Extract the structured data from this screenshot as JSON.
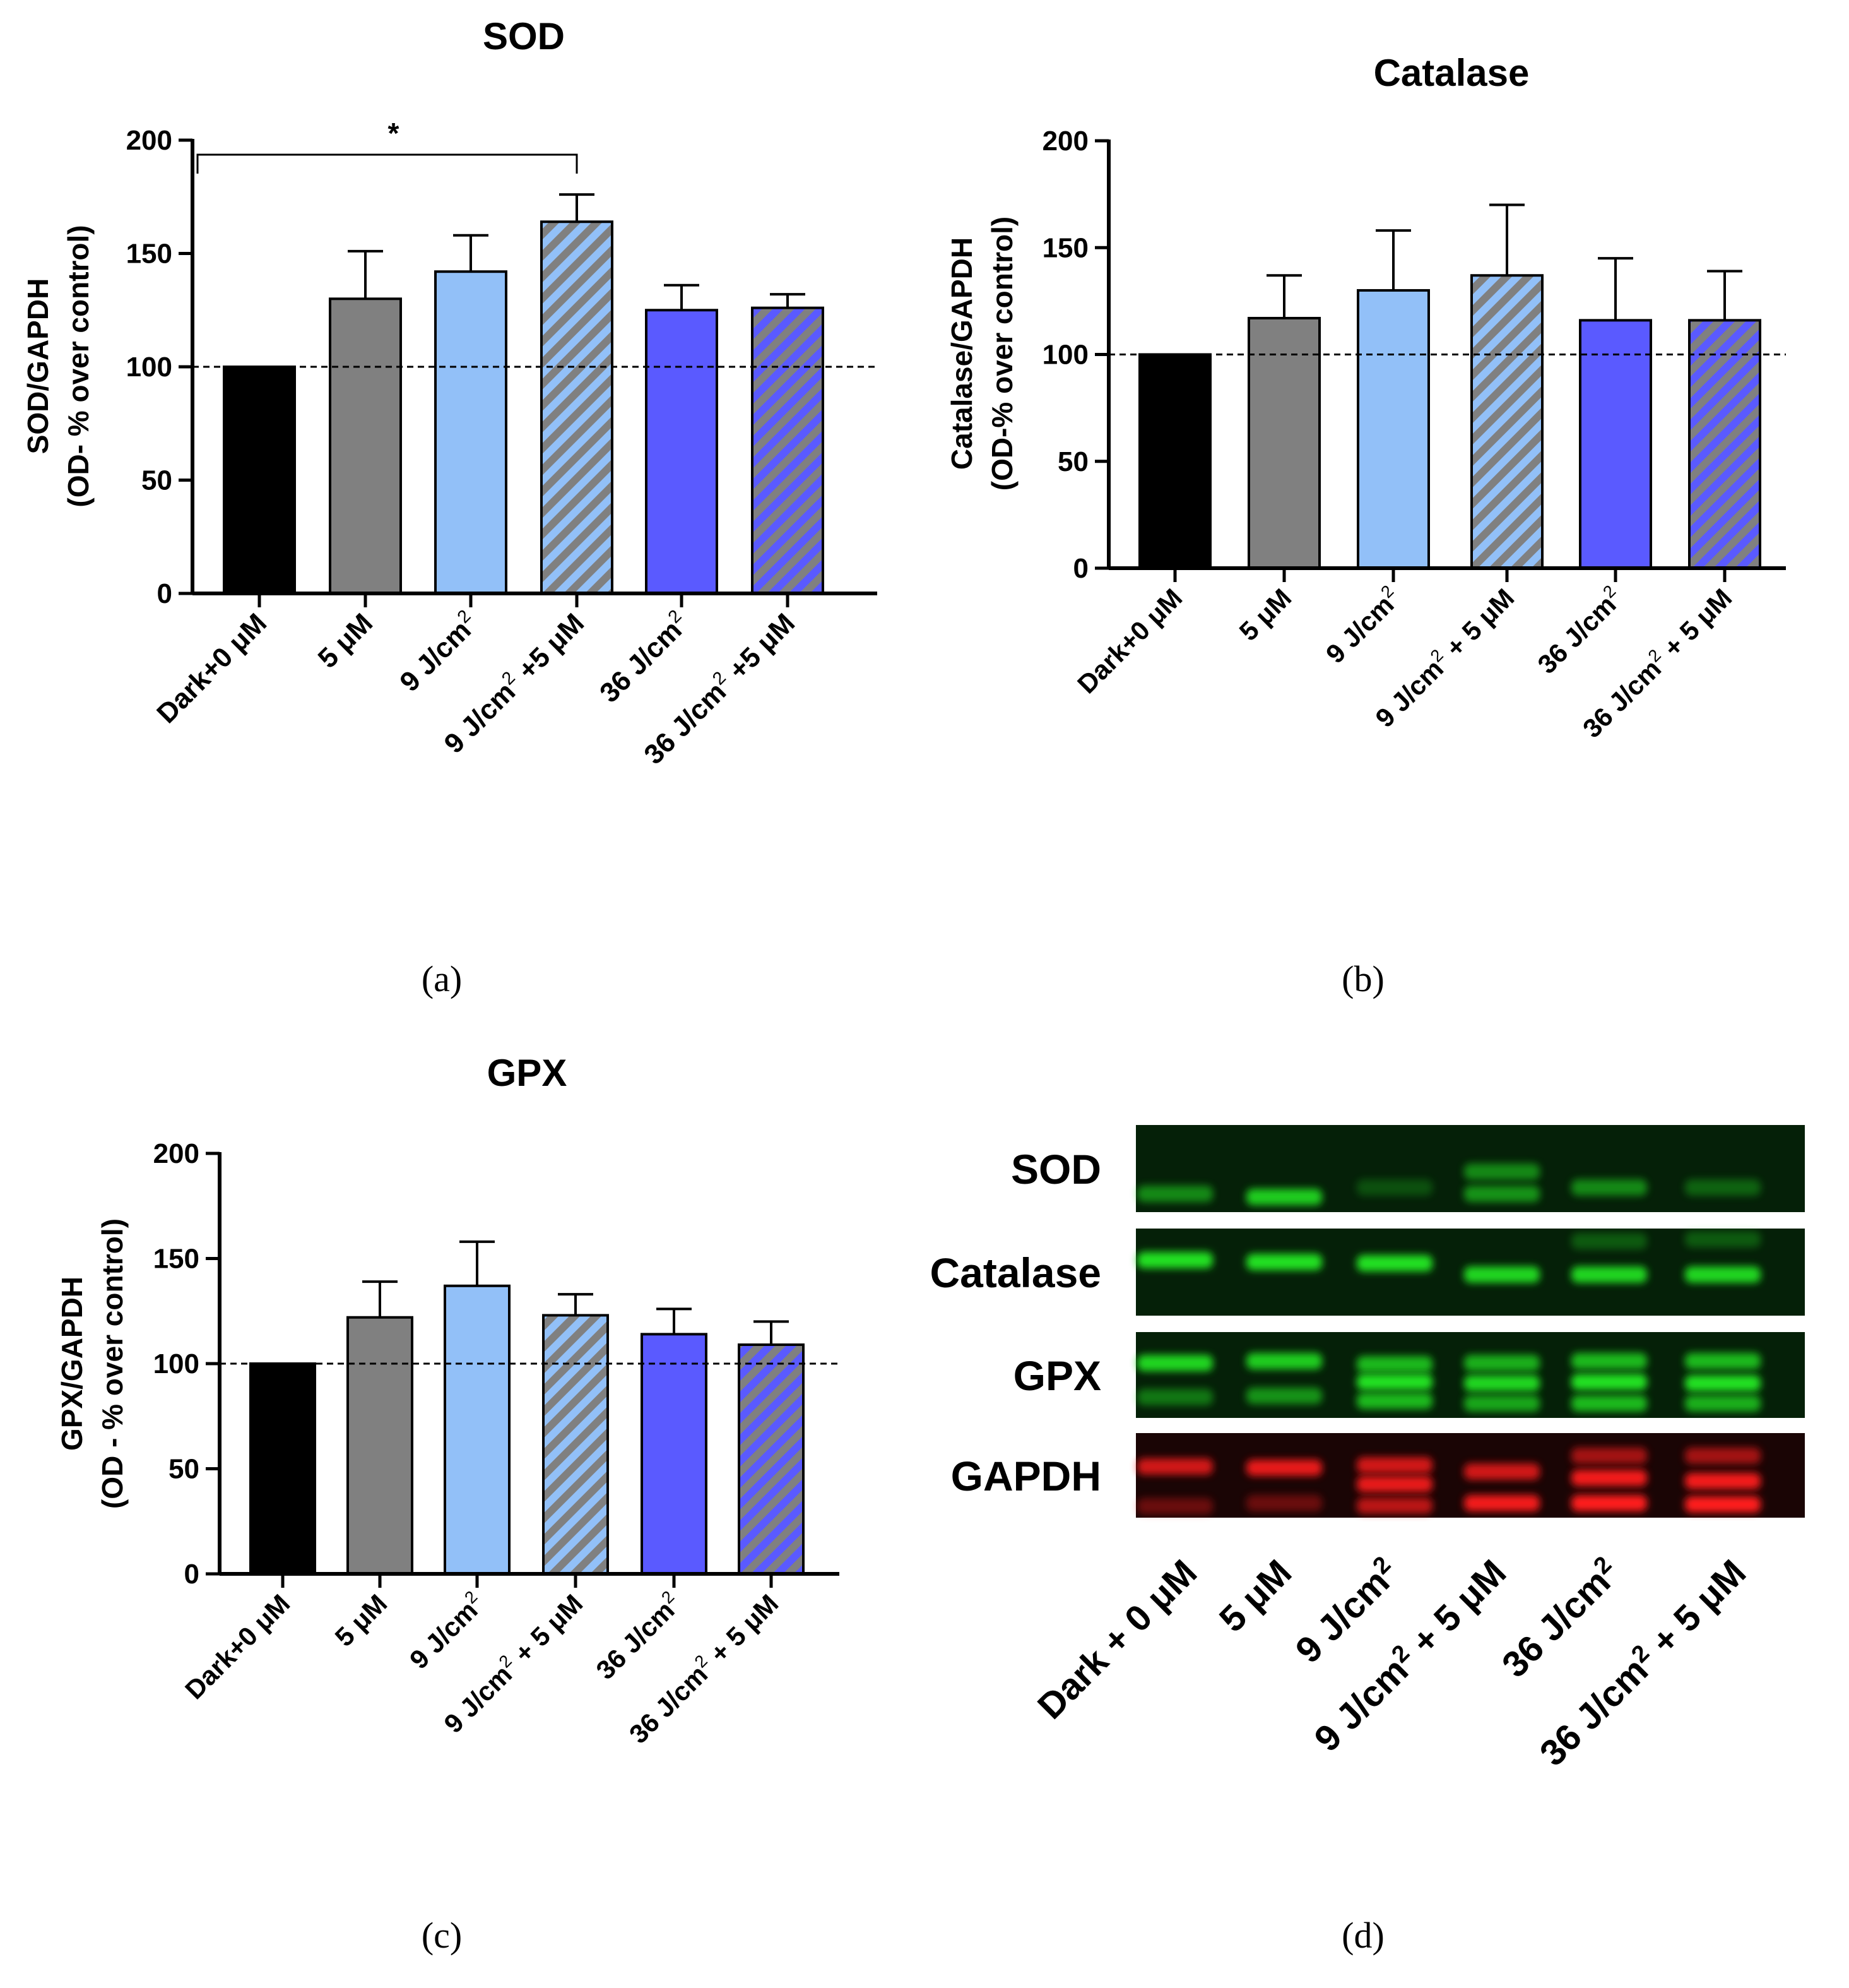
{
  "colors": {
    "black": "#000000",
    "gray": "#808080",
    "lightblue": "#92c0f8",
    "blue": "#5a5aff",
    "hatch_lightblue_a": "#92c0f8",
    "hatch_lightblue_b": "#808080",
    "hatch_blue_a": "#5a5aff",
    "hatch_blue_b": "#808080",
    "green_band": "#22e022",
    "red_band": "#ff1a1a"
  },
  "captions": {
    "a": "(a)",
    "b": "(b)",
    "c": "(c)",
    "d": "(d)"
  },
  "chart_data": [
    {
      "type": "bar",
      "title": "SOD",
      "ylabel_line1": "SOD/GAPDH",
      "ylabel_line2": "(OD- % over control)",
      "ylim": [
        0,
        200
      ],
      "yticks": [
        "0",
        "50",
        "100",
        "150",
        "200"
      ],
      "reference_line": 100,
      "categories": [
        {
          "base": "Dark+0 μM",
          "sup": "",
          "tail": ""
        },
        {
          "base": "5 μM",
          "sup": "",
          "tail": ""
        },
        {
          "base": "9 J/cm",
          "sup": "2",
          "tail": ""
        },
        {
          "base": "9 J/cm",
          "sup": "2",
          "tail": " +5 μM"
        },
        {
          "base": "36 J/cm",
          "sup": "2",
          "tail": ""
        },
        {
          "base": "36 J/cm",
          "sup": "2",
          "tail": " +5 μM"
        }
      ],
      "values": [
        100,
        130,
        142,
        164,
        125,
        126
      ],
      "errors": [
        0,
        21,
        16,
        12,
        11,
        6
      ],
      "fills": [
        "black",
        "gray",
        "lightblue",
        "hatch-lb",
        "blue",
        "hatch-bl"
      ],
      "significance": {
        "from": 0,
        "to": 3,
        "label": "*"
      }
    },
    {
      "type": "bar",
      "title": "Catalase",
      "ylabel_line1": "Catalase/GAPDH",
      "ylabel_line2": "(OD-% over control)",
      "ylim": [
        0,
        200
      ],
      "yticks": [
        "0",
        "50",
        "100",
        "150",
        "200"
      ],
      "reference_line": 100,
      "categories": [
        {
          "base": "Dark+0 μM",
          "sup": "",
          "tail": ""
        },
        {
          "base": "5 μM",
          "sup": "",
          "tail": ""
        },
        {
          "base": "9 J/cm",
          "sup": "2",
          "tail": ""
        },
        {
          "base": "9 J/cm",
          "sup": "2",
          "tail": " + 5 μM"
        },
        {
          "base": "36 J/cm",
          "sup": "2",
          "tail": ""
        },
        {
          "base": "36 J/cm",
          "sup": "2",
          "tail": " + 5 μM"
        }
      ],
      "values": [
        100,
        117,
        130,
        137,
        116,
        116
      ],
      "errors": [
        0,
        20,
        28,
        33,
        29,
        23
      ],
      "fills": [
        "black",
        "gray",
        "lightblue",
        "hatch-lb",
        "blue",
        "hatch-bl"
      ]
    },
    {
      "type": "bar",
      "title": "GPX",
      "ylabel_line1": "GPX/GAPDH",
      "ylabel_line2": "(OD - % over control)",
      "ylim": [
        0,
        200
      ],
      "yticks": [
        "0",
        "50",
        "100",
        "150",
        "200"
      ],
      "reference_line": 100,
      "categories": [
        {
          "base": "Dark+0 μM",
          "sup": "",
          "tail": ""
        },
        {
          "base": "5 μM",
          "sup": "",
          "tail": ""
        },
        {
          "base": "9 J/cm",
          "sup": "2",
          "tail": ""
        },
        {
          "base": "9 J/cm",
          "sup": "2",
          "tail": " + 5 μM"
        },
        {
          "base": "36 J/cm",
          "sup": "2",
          "tail": ""
        },
        {
          "base": "36 J/cm",
          "sup": "2",
          "tail": " + 5 μM"
        }
      ],
      "values": [
        100,
        122,
        137,
        123,
        114,
        109
      ],
      "errors": [
        0,
        17,
        21,
        10,
        12,
        11
      ],
      "fills": [
        "black",
        "gray",
        "lightblue",
        "hatch-lb",
        "blue",
        "hatch-bl"
      ]
    }
  ],
  "blot": {
    "rows": [
      "SOD",
      "Catalase",
      "GPX",
      "GAPDH"
    ],
    "lanes": [
      {
        "base": "Dark + 0 μM",
        "sup": "",
        "tail": ""
      },
      {
        "base": "5 μM",
        "sup": "",
        "tail": ""
      },
      {
        "base": "9 J/cm",
        "sup": "2",
        "tail": ""
      },
      {
        "base": "9 J/cm",
        "sup": "2",
        "tail": " + 5 μM"
      },
      {
        "base": "36 J/cm",
        "sup": "2",
        "tail": ""
      },
      {
        "base": "36 J/cm",
        "sup": "2",
        "tail": " + 5 μM"
      }
    ]
  }
}
